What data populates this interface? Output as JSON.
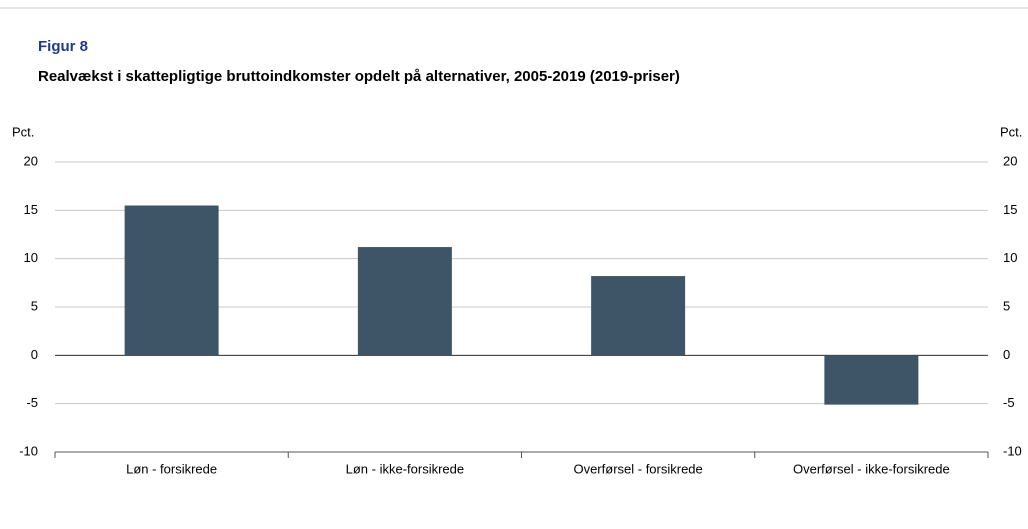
{
  "chart_data": {
    "type": "bar",
    "figure_label": "Figur 8",
    "title": "Realvækst i skattepligtige bruttoindkomster opdelt på alternativer, 2005-2019 (2019-priser)",
    "ylabel": "Pct.",
    "categories": [
      "Løn - forsikrede",
      "Løn - ikke-forsikrede",
      "Overførsel - forsikrede",
      "Overførsel - ikke-forsikrede"
    ],
    "values": [
      15.5,
      11.2,
      8.2,
      -5.1
    ],
    "color": "#3d5566",
    "ylim": [
      -10,
      20
    ],
    "yticks": [
      -10,
      -5,
      0,
      5,
      10,
      15,
      20
    ],
    "grid": true
  }
}
